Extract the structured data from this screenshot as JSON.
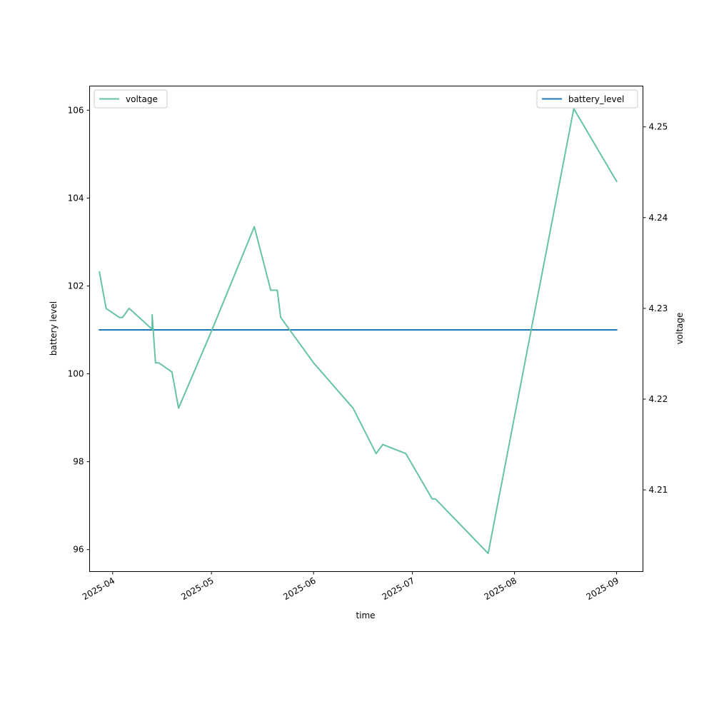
{
  "chart_data": {
    "type": "line",
    "title": "",
    "xlabel": "time",
    "ylabel": "battery level",
    "y2label": "voltage",
    "x_tick_labels": [
      "2025-04",
      "2025-05",
      "2025-06",
      "2025-07",
      "2025-08",
      "2025-09"
    ],
    "x_tick_dates": [
      "2025-04-01",
      "2025-05-01",
      "2025-06-01",
      "2025-07-01",
      "2025-08-01",
      "2025-09-01"
    ],
    "xlim": [
      "2025-03-25",
      "2025-09-09"
    ],
    "ylim": [
      95.5,
      106.55
    ],
    "y2lim": [
      4.201,
      4.2545
    ],
    "y_ticks": [
      96,
      98,
      100,
      102,
      104,
      106
    ],
    "y2_ticks": [
      4.21,
      4.22,
      4.23,
      4.24,
      4.25
    ],
    "y2_tick_labels": [
      "4.21",
      "4.22",
      "4.23",
      "4.24",
      "4.25"
    ],
    "legend_left": {
      "position": "upper-left"
    },
    "legend_right": {
      "position": "upper-right"
    },
    "series": [
      {
        "name": "battery_level",
        "axis": "left",
        "color": "#1f77b4",
        "points": [
          {
            "x": "2025-03-28",
            "y": 101
          },
          {
            "x": "2025-09-01",
            "y": 101
          }
        ]
      },
      {
        "name": "voltage",
        "axis": "right",
        "color": "#66c2a5",
        "points": [
          {
            "x": "2025-03-28",
            "y": 4.234
          },
          {
            "x": "2025-03-30",
            "y": 4.23
          },
          {
            "x": "2025-04-03",
            "y": 4.229
          },
          {
            "x": "2025-04-04",
            "y": 4.229
          },
          {
            "x": "2025-04-06",
            "y": 4.23
          },
          {
            "x": "2025-04-13",
            "y": 4.2277
          },
          {
            "x": "2025-04-13",
            "y": 4.2293
          },
          {
            "x": "2025-04-14",
            "y": 4.224
          },
          {
            "x": "2025-04-15",
            "y": 4.224
          },
          {
            "x": "2025-04-19",
            "y": 4.223
          },
          {
            "x": "2025-04-21",
            "y": 4.219
          },
          {
            "x": "2025-05-01",
            "y": 4.2275
          },
          {
            "x": "2025-05-14",
            "y": 4.239
          },
          {
            "x": "2025-05-19",
            "y": 4.232
          },
          {
            "x": "2025-05-21",
            "y": 4.232
          },
          {
            "x": "2025-05-22",
            "y": 4.229
          },
          {
            "x": "2025-06-01",
            "y": 4.224
          },
          {
            "x": "2025-06-13",
            "y": 4.219
          },
          {
            "x": "2025-06-20",
            "y": 4.214
          },
          {
            "x": "2025-06-22",
            "y": 4.215
          },
          {
            "x": "2025-06-29",
            "y": 4.214
          },
          {
            "x": "2025-07-07",
            "y": 4.209
          },
          {
            "x": "2025-07-08",
            "y": 4.209
          },
          {
            "x": "2025-07-24",
            "y": 4.203
          },
          {
            "x": "2025-08-19",
            "y": 4.252
          },
          {
            "x": "2025-09-01",
            "y": 4.244
          }
        ]
      }
    ]
  }
}
